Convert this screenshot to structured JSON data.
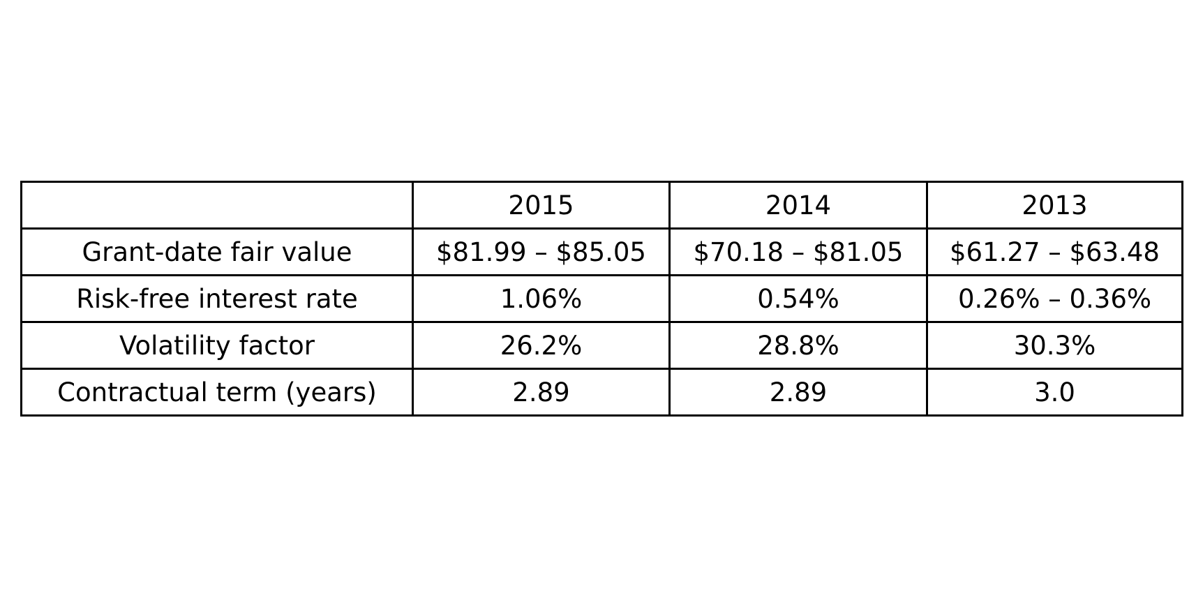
{
  "table": {
    "columns": [
      "",
      "2015",
      "2014",
      "2013"
    ],
    "rows": [
      {
        "label": "Grant-date fair value",
        "values": [
          "$81.99 – $85.05",
          "$70.18 – $81.05",
          "$61.27 – $63.48"
        ]
      },
      {
        "label": "Risk-free interest rate",
        "values": [
          "1.06%",
          "0.54%",
          "0.26% – 0.36%"
        ]
      },
      {
        "label": "Volatility factor",
        "values": [
          "26.2%",
          "28.8%",
          "30.3%"
        ]
      },
      {
        "label": "Contractual term (years)",
        "values": [
          "2.89",
          "2.89",
          "3.0"
        ]
      }
    ]
  }
}
